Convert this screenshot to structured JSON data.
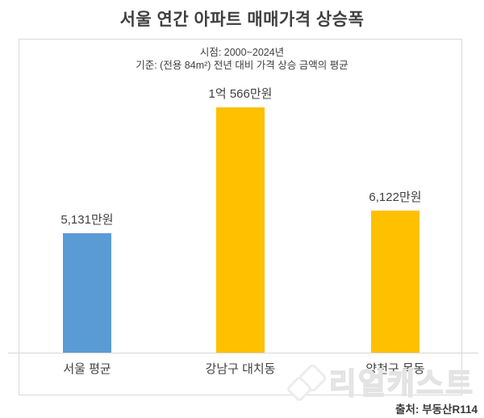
{
  "page": {
    "title": "서울 연간 아파트 매매가격 상승폭",
    "subtitle_line1": "시점: 2000~2024년",
    "subtitle_line2": "기준: (전용 84m²) 전년 대비 가격 상승 금액의 평균",
    "source": "출처: 부동산R114",
    "watermark_text": "리얼캐스트"
  },
  "colors": {
    "bar_blue": "#5B9BD5",
    "bar_gold": "#FFC000",
    "text_dark": "#404040",
    "border_gray": "#D9D9D9"
  },
  "chart_data": {
    "type": "bar",
    "title": "서울 연간 아파트 매매가격 상승폭",
    "subtitle": [
      "시점: 2000~2024년",
      "기준: (전용 84m²) 전년 대비 가격 상승 금액의 평균"
    ],
    "categories": [
      "서울 평균",
      "강남구 대치동",
      "양천구 목동"
    ],
    "values": [
      5131,
      10566,
      6122
    ],
    "value_labels": [
      "5,131만원",
      "1억 566만원",
      "6,122만원"
    ],
    "unit": "만원",
    "bar_colors": [
      "#5B9BD5",
      "#FFC000",
      "#FFC000"
    ],
    "ylim": [
      0,
      10566
    ],
    "grid": false,
    "legend": false,
    "source": "출처: 부동산R114"
  }
}
